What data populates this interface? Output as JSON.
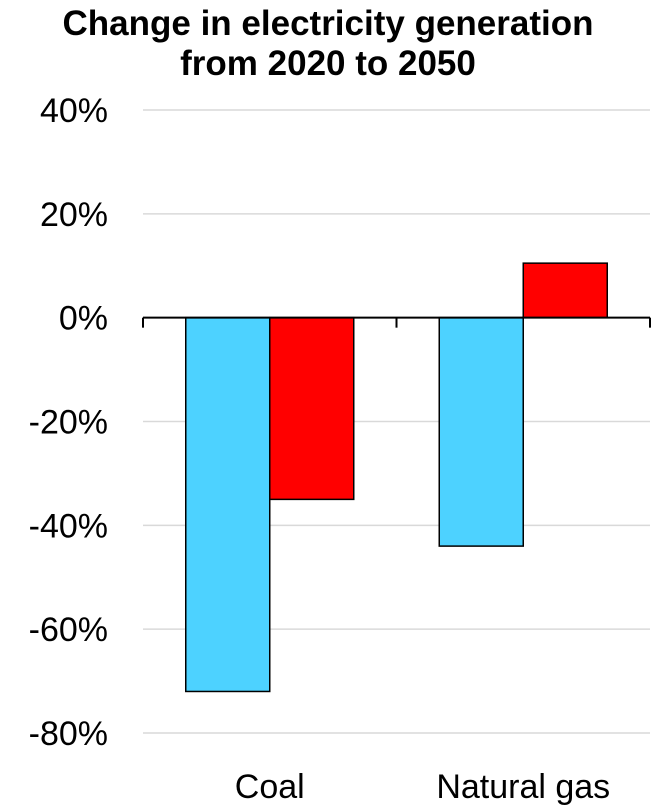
{
  "chart_data": {
    "type": "bar",
    "title_lines": [
      "Change in electricity generation",
      "from 2020 to 2050"
    ],
    "categories": [
      "Coal",
      "Natural gas"
    ],
    "series": [
      {
        "values": [
          -72,
          -44
        ],
        "color": "#4dd2ff"
      },
      {
        "values": [
          -35,
          10.5
        ],
        "color": "#ff0000"
      }
    ],
    "yticks": [
      "40%",
      "20%",
      "0%",
      "-20%",
      "-40%",
      "-60%",
      "-80%"
    ],
    "ylim": [
      -80,
      40
    ],
    "grid": true,
    "legend": "none"
  }
}
